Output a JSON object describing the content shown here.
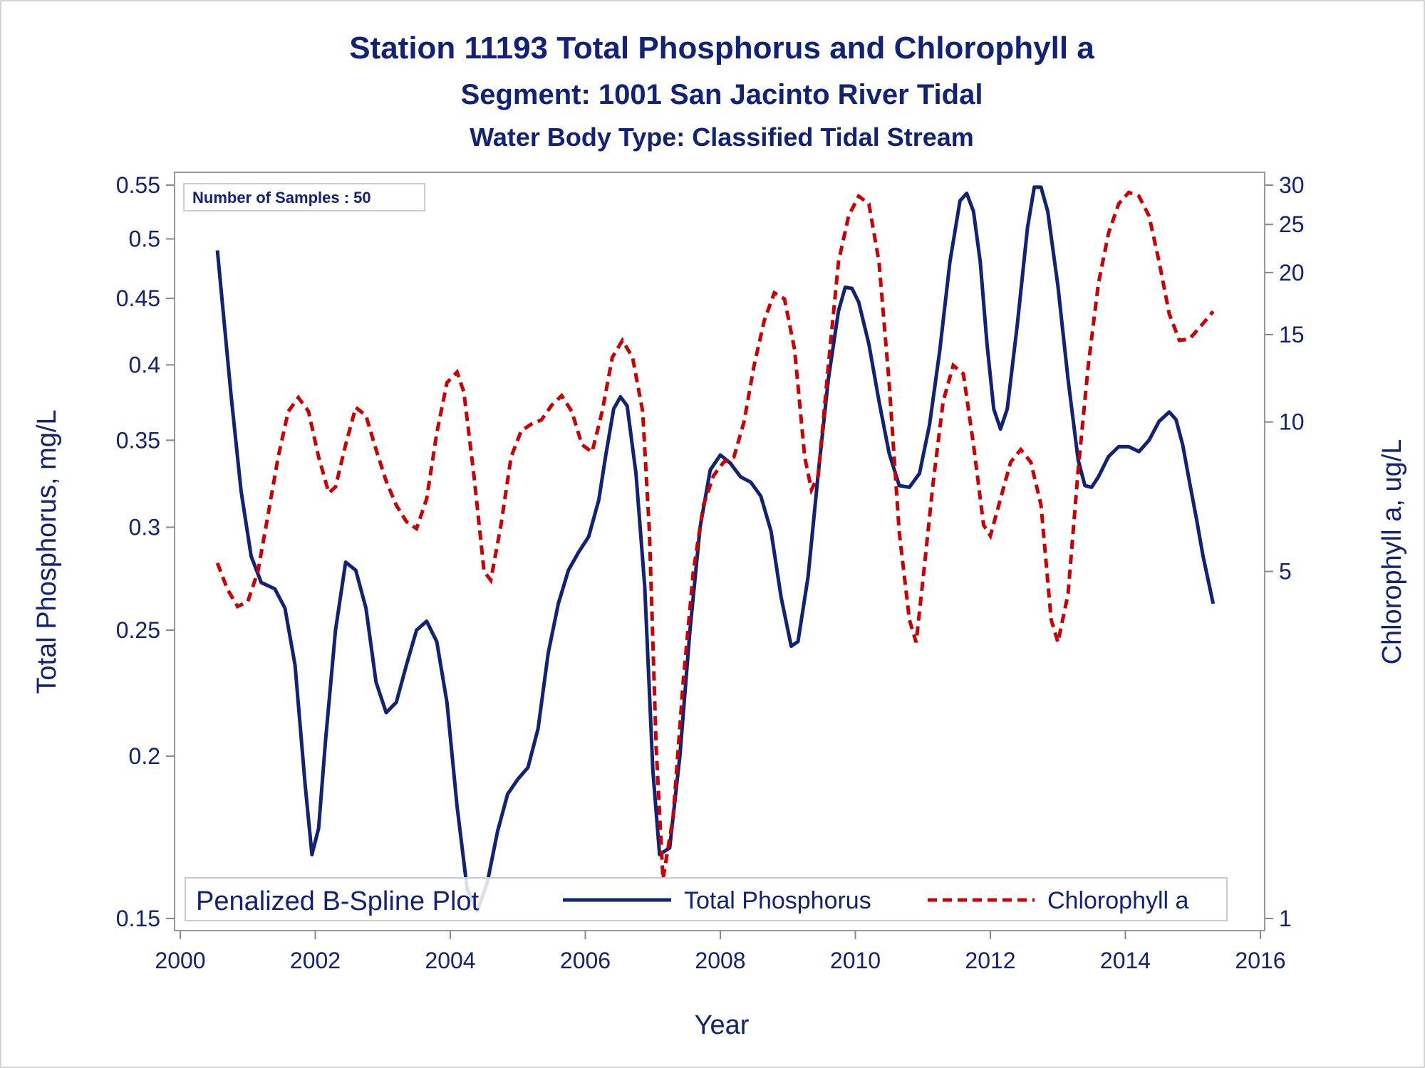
{
  "chart_data": {
    "type": "line",
    "title": "Station 11193  Total Phosphorus and Chlorophyll a",
    "subtitle": "Segment: 1001  San Jacinto River Tidal",
    "subtitle2": "Water Body Type: Classified Tidal Stream",
    "xlabel": "Year",
    "ylabel": "Total Phosphorus, mg/L",
    "y2label": "Chlorophyll a, ug/L",
    "xlim": [
      2000,
      2016
    ],
    "ylim": [
      0.15,
      0.55
    ],
    "y2lim": [
      1,
      30
    ],
    "yscale": "log",
    "y2scale": "log",
    "x_ticks": [
      "2000",
      "2002",
      "2004",
      "2006",
      "2008",
      "2010",
      "2012",
      "2014",
      "2016"
    ],
    "y_ticks": [
      "0.15",
      "0.2",
      "0.25",
      "0.3",
      "0.35",
      "0.4",
      "0.45",
      "0.5",
      "0.55"
    ],
    "y2_ticks": [
      "1",
      "5",
      "10",
      "15",
      "20",
      "25",
      "30"
    ],
    "annotation": "Number of Samples : 50",
    "legend_title": "Penalized B-Spline Plot",
    "legend_position": "bottom-inside",
    "grid": false,
    "series": [
      {
        "name": "Total Phosphorus",
        "axis": "left",
        "color": "#112277",
        "style": "solid",
        "points": [
          [
            2000.55,
            0.49
          ],
          [
            2000.75,
            0.38
          ],
          [
            2000.9,
            0.32
          ],
          [
            2001.05,
            0.285
          ],
          [
            2001.2,
            0.272
          ],
          [
            2001.4,
            0.269
          ],
          [
            2001.55,
            0.26
          ],
          [
            2001.7,
            0.235
          ],
          [
            2001.85,
            0.19
          ],
          [
            2001.95,
            0.168
          ],
          [
            2002.05,
            0.176
          ],
          [
            2002.15,
            0.205
          ],
          [
            2002.3,
            0.25
          ],
          [
            2002.45,
            0.282
          ],
          [
            2002.6,
            0.278
          ],
          [
            2002.75,
            0.26
          ],
          [
            2002.9,
            0.228
          ],
          [
            2003.05,
            0.216
          ],
          [
            2003.2,
            0.22
          ],
          [
            2003.35,
            0.235
          ],
          [
            2003.5,
            0.25
          ],
          [
            2003.65,
            0.254
          ],
          [
            2003.8,
            0.245
          ],
          [
            2003.95,
            0.22
          ],
          [
            2004.1,
            0.183
          ],
          [
            2004.25,
            0.158
          ],
          [
            2004.4,
            0.152
          ],
          [
            2004.55,
            0.16
          ],
          [
            2004.7,
            0.175
          ],
          [
            2004.85,
            0.187
          ],
          [
            2005.0,
            0.192
          ],
          [
            2005.15,
            0.196
          ],
          [
            2005.3,
            0.21
          ],
          [
            2005.45,
            0.24
          ],
          [
            2005.6,
            0.262
          ],
          [
            2005.75,
            0.278
          ],
          [
            2005.9,
            0.287
          ],
          [
            2006.05,
            0.295
          ],
          [
            2006.2,
            0.315
          ],
          [
            2006.3,
            0.34
          ],
          [
            2006.42,
            0.37
          ],
          [
            2006.52,
            0.378
          ],
          [
            2006.62,
            0.372
          ],
          [
            2006.75,
            0.33
          ],
          [
            2006.88,
            0.27
          ],
          [
            2007.0,
            0.195
          ],
          [
            2007.1,
            0.168
          ],
          [
            2007.25,
            0.17
          ],
          [
            2007.4,
            0.2
          ],
          [
            2007.55,
            0.25
          ],
          [
            2007.7,
            0.3
          ],
          [
            2007.85,
            0.332
          ],
          [
            2008.0,
            0.341
          ],
          [
            2008.15,
            0.336
          ],
          [
            2008.3,
            0.328
          ],
          [
            2008.45,
            0.325
          ],
          [
            2008.6,
            0.317
          ],
          [
            2008.75,
            0.298
          ],
          [
            2008.9,
            0.265
          ],
          [
            2009.05,
            0.243
          ],
          [
            2009.15,
            0.245
          ],
          [
            2009.3,
            0.275
          ],
          [
            2009.45,
            0.33
          ],
          [
            2009.6,
            0.39
          ],
          [
            2009.75,
            0.44
          ],
          [
            2009.85,
            0.459
          ],
          [
            2009.95,
            0.458
          ],
          [
            2010.05,
            0.447
          ],
          [
            2010.2,
            0.415
          ],
          [
            2010.35,
            0.375
          ],
          [
            2010.5,
            0.342
          ],
          [
            2010.65,
            0.323
          ],
          [
            2010.8,
            0.322
          ],
          [
            2010.95,
            0.33
          ],
          [
            2011.1,
            0.36
          ],
          [
            2011.25,
            0.41
          ],
          [
            2011.4,
            0.48
          ],
          [
            2011.55,
            0.535
          ],
          [
            2011.65,
            0.542
          ],
          [
            2011.75,
            0.525
          ],
          [
            2011.85,
            0.48
          ],
          [
            2011.95,
            0.415
          ],
          [
            2012.05,
            0.37
          ],
          [
            2012.15,
            0.357
          ],
          [
            2012.25,
            0.37
          ],
          [
            2012.4,
            0.43
          ],
          [
            2012.55,
            0.51
          ],
          [
            2012.65,
            0.548
          ],
          [
            2012.75,
            0.548
          ],
          [
            2012.85,
            0.525
          ],
          [
            2013.0,
            0.46
          ],
          [
            2013.15,
            0.39
          ],
          [
            2013.3,
            0.338
          ],
          [
            2013.4,
            0.323
          ],
          [
            2013.5,
            0.322
          ],
          [
            2013.6,
            0.328
          ],
          [
            2013.75,
            0.34
          ],
          [
            2013.9,
            0.346
          ],
          [
            2014.05,
            0.346
          ],
          [
            2014.2,
            0.343
          ],
          [
            2014.35,
            0.35
          ],
          [
            2014.5,
            0.362
          ],
          [
            2014.65,
            0.368
          ],
          [
            2014.75,
            0.363
          ],
          [
            2014.85,
            0.347
          ],
          [
            2014.95,
            0.325
          ],
          [
            2015.05,
            0.305
          ],
          [
            2015.15,
            0.285
          ],
          [
            2015.3,
            0.262
          ]
        ]
      },
      {
        "name": "Chlorophyll a",
        "axis": "right",
        "color": "#cc0000",
        "style": "dashed",
        "points": [
          [
            2000.55,
            5.2
          ],
          [
            2000.7,
            4.6
          ],
          [
            2000.85,
            4.25
          ],
          [
            2001.0,
            4.35
          ],
          [
            2001.15,
            5.0
          ],
          [
            2001.3,
            6.5
          ],
          [
            2001.45,
            8.5
          ],
          [
            2001.6,
            10.5
          ],
          [
            2001.75,
            11.2
          ],
          [
            2001.9,
            10.5
          ],
          [
            2002.05,
            8.5
          ],
          [
            2002.2,
            7.2
          ],
          [
            2002.3,
            7.4
          ],
          [
            2002.45,
            9.0
          ],
          [
            2002.6,
            10.7
          ],
          [
            2002.75,
            10.3
          ],
          [
            2002.9,
            8.8
          ],
          [
            2003.05,
            7.6
          ],
          [
            2003.2,
            6.8
          ],
          [
            2003.35,
            6.3
          ],
          [
            2003.5,
            6.1
          ],
          [
            2003.65,
            7.0
          ],
          [
            2003.8,
            9.5
          ],
          [
            2003.95,
            12.0
          ],
          [
            2004.1,
            12.6
          ],
          [
            2004.2,
            11.5
          ],
          [
            2004.35,
            7.8
          ],
          [
            2004.5,
            5.0
          ],
          [
            2004.6,
            4.8
          ],
          [
            2004.75,
            6.2
          ],
          [
            2004.9,
            8.5
          ],
          [
            2005.05,
            9.6
          ],
          [
            2005.2,
            9.9
          ],
          [
            2005.35,
            10.1
          ],
          [
            2005.5,
            10.8
          ],
          [
            2005.65,
            11.3
          ],
          [
            2005.8,
            10.5
          ],
          [
            2005.95,
            9.0
          ],
          [
            2006.1,
            8.7
          ],
          [
            2006.25,
            10.5
          ],
          [
            2006.4,
            13.5
          ],
          [
            2006.55,
            14.6
          ],
          [
            2006.7,
            13.5
          ],
          [
            2006.85,
            10.5
          ],
          [
            2006.95,
            6.0
          ],
          [
            2007.05,
            2.2
          ],
          [
            2007.15,
            1.2
          ],
          [
            2007.3,
            1.6
          ],
          [
            2007.45,
            3.0
          ],
          [
            2007.6,
            5.0
          ],
          [
            2007.75,
            6.8
          ],
          [
            2007.9,
            7.8
          ],
          [
            2008.05,
            8.3
          ],
          [
            2008.2,
            8.5
          ],
          [
            2008.35,
            10.0
          ],
          [
            2008.5,
            13.0
          ],
          [
            2008.65,
            16.0
          ],
          [
            2008.8,
            18.2
          ],
          [
            2008.95,
            17.7
          ],
          [
            2009.1,
            14.0
          ],
          [
            2009.25,
            8.5
          ],
          [
            2009.35,
            7.3
          ],
          [
            2009.45,
            7.8
          ],
          [
            2009.6,
            13.0
          ],
          [
            2009.75,
            21.0
          ],
          [
            2009.9,
            26.0
          ],
          [
            2010.05,
            28.5
          ],
          [
            2010.2,
            27.5
          ],
          [
            2010.35,
            21.0
          ],
          [
            2010.5,
            12.0
          ],
          [
            2010.65,
            6.0
          ],
          [
            2010.8,
            4.0
          ],
          [
            2010.9,
            3.6
          ],
          [
            2011.0,
            4.8
          ],
          [
            2011.15,
            7.5
          ],
          [
            2011.3,
            11.0
          ],
          [
            2011.45,
            13.0
          ],
          [
            2011.6,
            12.5
          ],
          [
            2011.75,
            9.0
          ],
          [
            2011.9,
            6.2
          ],
          [
            2012.0,
            5.9
          ],
          [
            2012.15,
            7.0
          ],
          [
            2012.3,
            8.3
          ],
          [
            2012.45,
            8.8
          ],
          [
            2012.6,
            8.3
          ],
          [
            2012.75,
            6.8
          ],
          [
            2012.9,
            4.0
          ],
          [
            2013.0,
            3.6
          ],
          [
            2013.15,
            4.5
          ],
          [
            2013.3,
            8.0
          ],
          [
            2013.45,
            13.0
          ],
          [
            2013.6,
            19.0
          ],
          [
            2013.75,
            24.0
          ],
          [
            2013.9,
            27.5
          ],
          [
            2014.05,
            29.0
          ],
          [
            2014.2,
            28.5
          ],
          [
            2014.35,
            26.0
          ],
          [
            2014.5,
            21.0
          ],
          [
            2014.65,
            16.5
          ],
          [
            2014.8,
            14.6
          ],
          [
            2014.95,
            14.7
          ],
          [
            2015.1,
            15.5
          ],
          [
            2015.3,
            16.7
          ]
        ]
      }
    ]
  }
}
